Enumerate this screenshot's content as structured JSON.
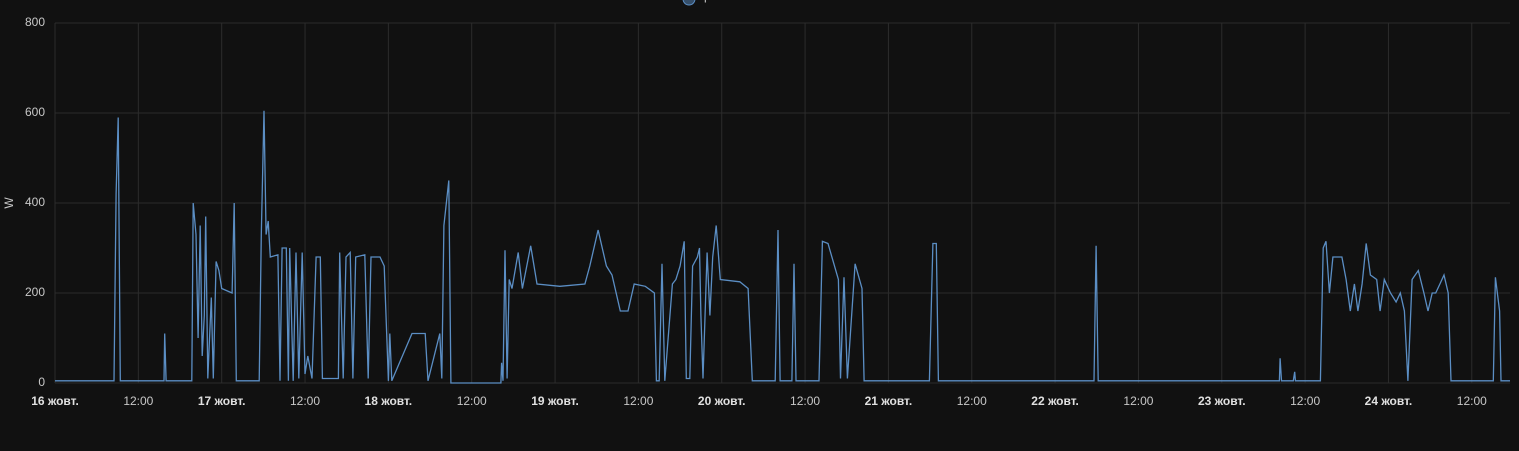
{
  "chart_data": {
    "type": "line",
    "y_label": "W",
    "series": [
      {
        "name": "реле ТП живлення",
        "color": "#5b8ec4",
        "x": [
          0,
          8.5,
          8.8,
          9.1,
          9.4,
          15.7,
          15.8,
          16.0,
          19.7,
          19.9,
          20.3,
          20.6,
          20.9,
          21.2,
          21.5,
          21.7,
          22.0,
          22.5,
          22.8,
          23.2,
          23.6,
          24.0,
          25.5,
          25.8,
          26.1,
          29.4,
          29.7,
          30.1,
          30.4,
          30.7,
          31.0,
          32.1,
          32.4,
          32.7,
          33.3,
          33.6,
          33.8,
          34.3,
          34.7,
          35.1,
          35.6,
          36.0,
          36.4,
          37.0,
          37.6,
          38.2,
          38.5,
          40.8,
          41.0,
          41.5,
          41.9,
          42.5,
          42.9,
          43.3,
          44.6,
          45.1,
          45.5,
          46.8,
          47.4,
          48.0,
          48.2,
          48.5,
          51.4,
          53.3,
          53.7,
          55.4,
          55.7,
          56.0,
          56.7,
          57.0,
          64.2,
          64.3,
          64.5,
          64.8,
          65.1,
          65.4,
          65.8,
          66.7,
          67.3,
          68.5,
          69.4,
          72.7,
          76.3,
          77.0,
          78.2,
          79.4,
          80.2,
          81.4,
          82.5,
          83.4,
          85.0,
          86.3,
          86.6,
          87.0,
          87.4,
          87.8,
          88.9,
          89.4,
          90.0,
          90.6,
          90.9,
          91.4,
          91.8,
          92.5,
          92.8,
          93.0,
          93.3,
          93.9,
          94.3,
          94.7,
          95.2,
          95.8,
          98.6,
          99.8,
          100.4,
          103.7,
          104.1,
          104.4,
          106.1,
          106.4,
          106.7,
          110.0,
          110.5,
          111.3,
          112.8,
          113.1,
          113.6,
          114.1,
          115.2,
          116.2,
          116.5,
          125.9,
          126.4,
          126.9,
          127.2,
          149.6,
          149.9,
          150.2,
          176.3,
          176.4,
          176.6,
          178.3,
          178.5,
          178.6,
          182.2,
          182.6,
          183.0,
          183.5,
          184.0,
          185.3,
          185.9,
          186.5,
          187.1,
          187.6,
          188.2,
          188.8,
          189.4,
          190.3,
          190.8,
          191.4,
          192.3,
          193.1,
          193.7,
          194.3,
          194.8,
          195.4,
          196.3,
          197.1,
          197.7,
          198.3,
          198.8,
          199.4,
          200.0,
          200.6,
          201.0,
          207.1,
          207.4,
          208.0,
          208.2,
          209.5
        ],
        "values": [
          5,
          5,
          420,
          590,
          5,
          5,
          110,
          5,
          5,
          400,
          330,
          100,
          350,
          60,
          150,
          370,
          10,
          190,
          10,
          270,
          250,
          210,
          200,
          400,
          5,
          5,
          330,
          605,
          330,
          360,
          280,
          285,
          5,
          300,
          300,
          5,
          300,
          5,
          290,
          10,
          290,
          20,
          60,
          10,
          280,
          280,
          10,
          10,
          290,
          10,
          280,
          290,
          10,
          280,
          285,
          10,
          280,
          280,
          260,
          5,
          110,
          5,
          110,
          110,
          5,
          110,
          10,
          350,
          450,
          0,
          0,
          45,
          5,
          295,
          10,
          230,
          210,
          290,
          210,
          305,
          220,
          215,
          220,
          260,
          340,
          260,
          240,
          160,
          160,
          220,
          215,
          200,
          5,
          5,
          265,
          5,
          220,
          230,
          260,
          315,
          10,
          10,
          260,
          280,
          300,
          150,
          10,
          290,
          150,
          280,
          350,
          230,
          225,
          210,
          5,
          5,
          340,
          5,
          5,
          265,
          5,
          5,
          315,
          310,
          230,
          10,
          235,
          10,
          265,
          210,
          5,
          5,
          310,
          310,
          5,
          5,
          305,
          5,
          5,
          55,
          5,
          5,
          25,
          5,
          5,
          300,
          315,
          200,
          280,
          280,
          230,
          160,
          220,
          160,
          220,
          310,
          240,
          230,
          160,
          230,
          200,
          180,
          200,
          160,
          5,
          230,
          250,
          200,
          160,
          200,
          200,
          220,
          240,
          200,
          5,
          5,
          235,
          160,
          5,
          5
        ]
      }
    ],
    "xlim": [
      0,
      209.5
    ],
    "xticks": [
      {
        "value": 0,
        "label": "16 жовт."
      },
      {
        "value": 12,
        "label": "12:00"
      },
      {
        "value": 24,
        "label": "17 жовт."
      },
      {
        "value": 36,
        "label": "12:00"
      },
      {
        "value": 48,
        "label": "18 жовт."
      },
      {
        "value": 60,
        "label": "12:00"
      },
      {
        "value": 72,
        "label": "19 жовт."
      },
      {
        "value": 84,
        "label": "12:00"
      },
      {
        "value": 96,
        "label": "20 жовт."
      },
      {
        "value": 108,
        "label": "12:00"
      },
      {
        "value": 120,
        "label": "21 жовт."
      },
      {
        "value": 132,
        "label": "12:00"
      },
      {
        "value": 144,
        "label": "22 жовт."
      },
      {
        "value": 156,
        "label": "12:00"
      },
      {
        "value": 168,
        "label": "23 жовт."
      },
      {
        "value": 180,
        "label": "12:00"
      },
      {
        "value": 192,
        "label": "24 жовт."
      },
      {
        "value": 204,
        "label": "12:00"
      }
    ],
    "ylim": [
      0,
      800
    ],
    "yticks": [
      0,
      200,
      400,
      600,
      800
    ],
    "grid": true
  }
}
